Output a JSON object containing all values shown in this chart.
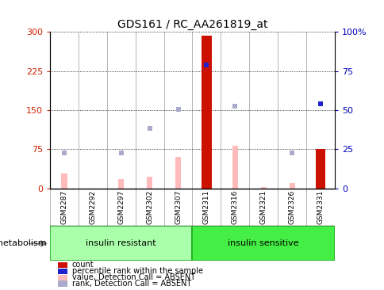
{
  "title": "GDS161 / RC_AA261819_at",
  "samples": [
    "GSM2287",
    "GSM2292",
    "GSM2297",
    "GSM2302",
    "GSM2307",
    "GSM2311",
    "GSM2316",
    "GSM2321",
    "GSM2326",
    "GSM2331"
  ],
  "count_values": [
    0,
    0,
    0,
    0,
    0,
    293,
    0,
    0,
    0,
    75
  ],
  "percentile_rank_left": [
    null,
    null,
    null,
    null,
    null,
    237,
    null,
    null,
    null,
    163
  ],
  "absent_value": [
    28,
    0,
    18,
    22,
    60,
    0,
    82,
    3,
    10,
    4
  ],
  "absent_rank": [
    68,
    0,
    68,
    115,
    152,
    0,
    157,
    0,
    68,
    0
  ],
  "left_yticks": [
    0,
    75,
    150,
    225,
    300
  ],
  "right_yticks": [
    0,
    25,
    50,
    75,
    100
  ],
  "left_ylim": [
    0,
    300
  ],
  "right_ylim": [
    0,
    100
  ],
  "left_color": "#cc2200",
  "right_color": "#0000bb",
  "count_color": "#cc1100",
  "rank_color": "#2222cc",
  "absent_val_color": "#ffbbbb",
  "absent_rank_color": "#aaaacc",
  "group1_color": "#aaffaa",
  "group2_color": "#44ee44",
  "group_border_color": "#22aa22",
  "sample_box_color": "#cccccc",
  "metabolism_label": "metabolism",
  "group1_label": "insulin resistant",
  "group2_label": "insulin sensitive",
  "legend_items": [
    {
      "label": "count",
      "color": "#cc1100"
    },
    {
      "label": "percentile rank within the sample",
      "color": "#2222cc"
    },
    {
      "label": "value, Detection Call = ABSENT",
      "color": "#ffbbbb"
    },
    {
      "label": "rank, Detection Call = ABSENT",
      "color": "#aaaacc"
    }
  ]
}
